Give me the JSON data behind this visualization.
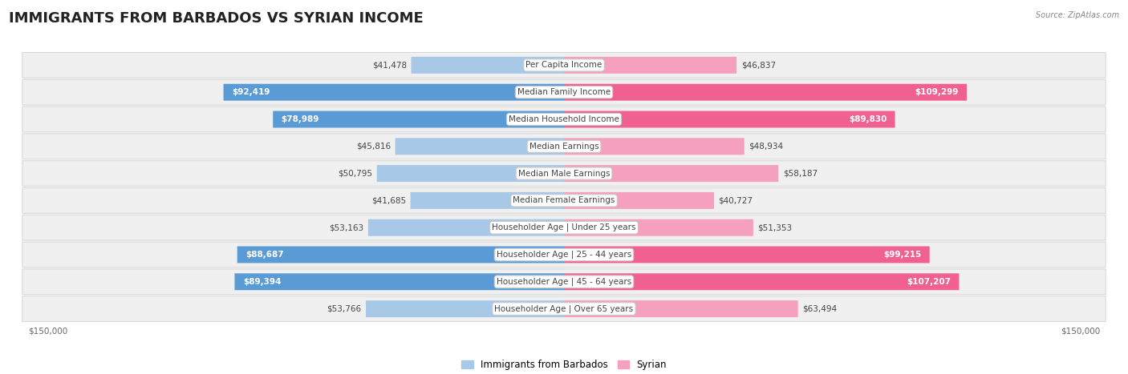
{
  "title": "IMMIGRANTS FROM BARBADOS VS SYRIAN INCOME",
  "source": "Source: ZipAtlas.com",
  "categories": [
    "Per Capita Income",
    "Median Family Income",
    "Median Household Income",
    "Median Earnings",
    "Median Male Earnings",
    "Median Female Earnings",
    "Householder Age | Under 25 years",
    "Householder Age | 25 - 44 years",
    "Householder Age | 45 - 64 years",
    "Householder Age | Over 65 years"
  ],
  "barbados_values": [
    41478,
    92419,
    78989,
    45816,
    50795,
    41685,
    53163,
    88687,
    89394,
    53766
  ],
  "syrian_values": [
    46837,
    109299,
    89830,
    48934,
    58187,
    40727,
    51353,
    99215,
    107207,
    63494
  ],
  "barbados_color_light": "#a8c8e8",
  "barbados_color_dark": "#5b9bd5",
  "syrian_color_light": "#f4a0be",
  "syrian_color_dark": "#f06090",
  "row_bg_color": "#f0f0f0",
  "row_border_color": "#d8d8d8",
  "max_value": 150000,
  "xlabel_left": "$150,000",
  "xlabel_right": "$150,000",
  "legend_barbados": "Immigrants from Barbados",
  "legend_syrian": "Syrian",
  "title_fontsize": 13,
  "label_fontsize": 7.5,
  "value_fontsize": 7.5,
  "threshold": 65000
}
